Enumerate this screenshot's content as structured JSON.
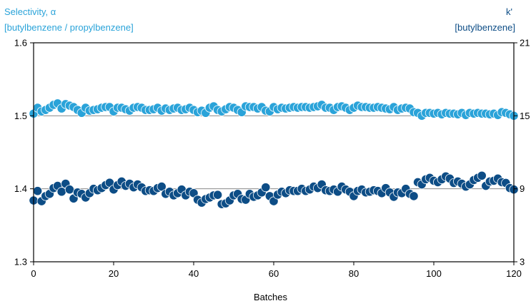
{
  "chart_data": {
    "type": "scatter",
    "title": "",
    "xlabel": "Batches",
    "ylabel_left": [
      "Selectivity, α",
      "[butylbenzene / propylbenzene]"
    ],
    "ylabel_right": [
      "k'",
      "[butylbenzene]"
    ],
    "xlim": [
      0,
      120
    ],
    "ylim_left": [
      1.3,
      1.6
    ],
    "ylim_right": [
      3,
      21
    ],
    "x_ticks": [
      "0",
      "20",
      "40",
      "60",
      "80",
      "100",
      "120"
    ],
    "y_ticks_left": [
      "1.3",
      "1.4",
      "1.5",
      "1.6"
    ],
    "y_ticks_right": [
      "3",
      "9",
      "15",
      "21"
    ],
    "reference_lines_left": [
      1.4,
      1.5
    ],
    "colors": {
      "selectivity": "#2aa3d9",
      "kprime": "#0d4d86",
      "axis": "#000000",
      "refline": "#8a8a8a"
    },
    "series": [
      {
        "name": "Selectivity, α",
        "axis": "left",
        "x": [
          0,
          1,
          2,
          3,
          4,
          5,
          6,
          7,
          8,
          9,
          10,
          11,
          12,
          13,
          14,
          15,
          16,
          17,
          18,
          19,
          20,
          21,
          22,
          23,
          24,
          25,
          26,
          27,
          28,
          29,
          30,
          31,
          32,
          33,
          34,
          35,
          36,
          37,
          38,
          39,
          40,
          41,
          42,
          43,
          44,
          45,
          46,
          47,
          48,
          49,
          50,
          51,
          52,
          53,
          54,
          55,
          56,
          57,
          58,
          59,
          60,
          61,
          62,
          63,
          64,
          65,
          66,
          67,
          68,
          69,
          70,
          71,
          72,
          73,
          74,
          75,
          76,
          77,
          78,
          79,
          80,
          81,
          82,
          83,
          84,
          85,
          86,
          87,
          88,
          89,
          90,
          91,
          92,
          93,
          94,
          95,
          96,
          97,
          98,
          99,
          100,
          101,
          102,
          103,
          104,
          105,
          106,
          107,
          108,
          109,
          110,
          111,
          112,
          113,
          114,
          115,
          116,
          117,
          118,
          119,
          120
        ],
        "values": [
          1.503,
          1.511,
          1.506,
          1.508,
          1.511,
          1.515,
          1.517,
          1.51,
          1.516,
          1.514,
          1.512,
          1.508,
          1.504,
          1.511,
          1.507,
          1.508,
          1.509,
          1.511,
          1.512,
          1.512,
          1.506,
          1.511,
          1.511,
          1.509,
          1.507,
          1.511,
          1.512,
          1.511,
          1.508,
          1.508,
          1.509,
          1.511,
          1.507,
          1.51,
          1.508,
          1.51,
          1.511,
          1.508,
          1.509,
          1.511,
          1.508,
          1.505,
          1.507,
          1.504,
          1.511,
          1.513,
          1.508,
          1.506,
          1.509,
          1.512,
          1.511,
          1.508,
          1.505,
          1.513,
          1.512,
          1.512,
          1.51,
          1.512,
          1.507,
          1.506,
          1.512,
          1.509,
          1.511,
          1.51,
          1.511,
          1.512,
          1.511,
          1.512,
          1.512,
          1.511,
          1.512,
          1.513,
          1.515,
          1.511,
          1.511,
          1.508,
          1.512,
          1.513,
          1.511,
          1.508,
          1.511,
          1.514,
          1.512,
          1.512,
          1.511,
          1.511,
          1.512,
          1.511,
          1.51,
          1.509,
          1.512,
          1.508,
          1.51,
          1.511,
          1.51,
          1.505,
          1.504,
          1.5,
          1.504,
          1.504,
          1.503,
          1.504,
          1.502,
          1.504,
          1.503,
          1.503,
          1.502,
          1.504,
          1.501,
          1.504,
          1.503,
          1.504,
          1.503,
          1.503,
          1.502,
          1.503,
          1.501,
          1.505,
          1.504,
          1.502,
          1.5
        ]
      },
      {
        "name": "k'",
        "axis": "right",
        "x": [
          0,
          1,
          2,
          3,
          4,
          5,
          6,
          7,
          8,
          9,
          10,
          11,
          12,
          13,
          14,
          15,
          16,
          17,
          18,
          19,
          20,
          21,
          22,
          23,
          24,
          25,
          26,
          27,
          28,
          29,
          30,
          31,
          32,
          33,
          34,
          35,
          36,
          37,
          38,
          39,
          40,
          41,
          42,
          43,
          44,
          45,
          46,
          47,
          48,
          49,
          50,
          51,
          52,
          53,
          54,
          55,
          56,
          57,
          58,
          59,
          60,
          61,
          62,
          63,
          64,
          65,
          66,
          67,
          68,
          69,
          70,
          71,
          72,
          73,
          74,
          75,
          76,
          77,
          78,
          79,
          80,
          81,
          82,
          83,
          84,
          85,
          86,
          87,
          88,
          89,
          90,
          91,
          92,
          93,
          94,
          95,
          96,
          97,
          98,
          99,
          100,
          101,
          102,
          103,
          104,
          105,
          106,
          107,
          108,
          109,
          110,
          111,
          112,
          113,
          114,
          115,
          116,
          117,
          118,
          119,
          120
        ],
        "values": [
          8.04,
          8.82,
          7.98,
          8.4,
          8.58,
          9.06,
          9.24,
          8.76,
          9.42,
          8.94,
          8.2,
          8.7,
          8.58,
          8.28,
          8.64,
          9.0,
          8.88,
          9.06,
          9.3,
          9.5,
          8.94,
          9.3,
          9.6,
          9.24,
          9.42,
          9.12,
          9.36,
          9.12,
          8.82,
          8.88,
          8.82,
          9.06,
          9.18,
          8.58,
          8.76,
          8.46,
          8.64,
          8.94,
          8.46,
          8.76,
          8.64,
          8.1,
          7.86,
          8.16,
          8.28,
          8.46,
          8.5,
          7.74,
          7.8,
          8.04,
          8.46,
          8.58,
          8.16,
          8.1,
          8.58,
          8.34,
          8.46,
          8.7,
          9.12,
          8.4,
          7.98,
          8.52,
          8.76,
          8.64,
          8.88,
          8.82,
          8.82,
          9.0,
          8.82,
          8.94,
          9.18,
          9.06,
          9.36,
          8.88,
          8.82,
          8.94,
          8.76,
          9.18,
          8.94,
          8.76,
          8.4,
          8.82,
          8.94,
          8.7,
          8.76,
          8.88,
          8.82,
          8.64,
          9.06,
          8.7,
          8.34,
          8.7,
          8.64,
          9.0,
          8.58,
          8.4,
          9.54,
          9.36,
          9.78,
          9.9,
          9.66,
          9.54,
          9.78,
          10.02,
          9.84,
          9.48,
          9.6,
          9.42,
          9.18,
          9.36,
          9.72,
          9.9,
          10.08,
          9.24,
          9.6,
          9.66,
          9.84,
          9.54,
          9.48,
          9.06,
          8.94
        ]
      }
    ]
  }
}
